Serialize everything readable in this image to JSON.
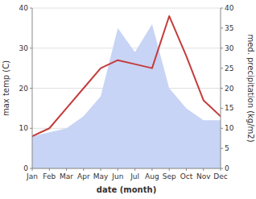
{
  "chart_data": {
    "type": "line",
    "categories": [
      "Jan",
      "Feb",
      "Mar",
      "Apr",
      "May",
      "Jun",
      "Jul",
      "Aug",
      "Sep",
      "Oct",
      "Nov",
      "Dec"
    ],
    "series": [
      {
        "type": "area",
        "axis": "y2",
        "color": "#c8d4f5",
        "values": [
          8,
          9,
          10,
          13,
          18,
          35,
          29,
          36,
          20,
          15,
          12,
          12
        ]
      },
      {
        "type": "line",
        "color": "#c43c3c",
        "values": [
          8,
          10,
          15,
          20,
          25,
          27,
          26,
          25,
          38,
          28,
          17,
          13
        ]
      }
    ],
    "xlabel": "date (month)",
    "ylabel": "max temp (C)",
    "y2label": "med. precipitation (kg/m2)",
    "ylim": [
      0,
      40
    ],
    "yticks": [
      0,
      10,
      20,
      30,
      40
    ],
    "y2lim": [
      0,
      40
    ],
    "y2ticks": [
      0,
      5,
      10,
      15,
      20,
      25,
      30,
      35,
      40
    ],
    "grid": true
  }
}
